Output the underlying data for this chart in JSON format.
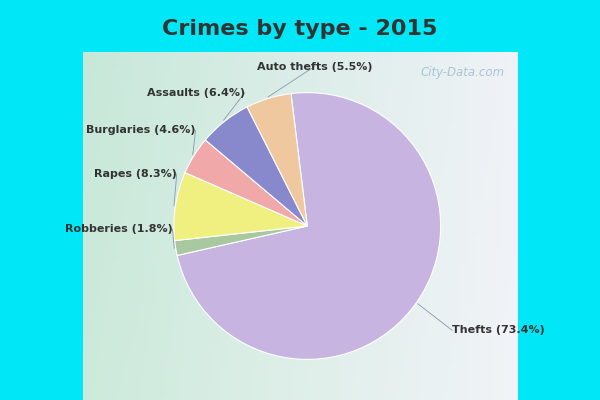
{
  "title": "Crimes by type - 2015",
  "labels": [
    "Thefts",
    "Robberies",
    "Rapes",
    "Burglaries",
    "Assaults",
    "Auto thefts"
  ],
  "values": [
    73.4,
    1.8,
    8.3,
    4.6,
    6.4,
    5.5
  ],
  "colors": [
    "#c8b4e0",
    "#a8c8a0",
    "#f0f080",
    "#f0a8a8",
    "#8888cc",
    "#f0c8a0"
  ],
  "label_texts": [
    "Thefts (73.4%)",
    "Robberies (1.8%)",
    "Rapes (8.3%)",
    "Burglaries (4.6%)",
    "Assaults (6.4%)",
    "Auto thefts (5.5%)"
  ],
  "title_color": "#333333",
  "title_fontsize": 16,
  "label_fontsize": 8,
  "watermark": "City-Data.com",
  "startangle": 97,
  "bg_top_color": "#00e8f8",
  "bg_main_color_tl": "#c8e8d8",
  "bg_main_color_br": "#e8e8f8",
  "cyan_bar_height": 0.13
}
